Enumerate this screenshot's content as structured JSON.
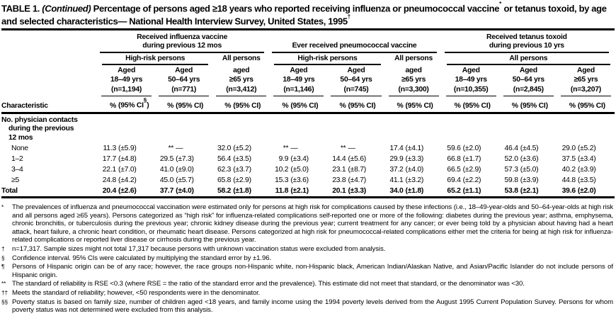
{
  "colors": {
    "text": "#000000",
    "background": "#ffffff"
  },
  "title": {
    "label": "TABLE 1.",
    "continued": "(Continued)",
    "body": "Percentage of persons aged ≥18 years who reported receiving influenza or pneumococcal vaccine",
    "sup1": "*",
    "body2": " or tetanus toxoid, by age and selected characteristics— National Health Interview Survey, United States, 1995",
    "sup2": "†"
  },
  "table": {
    "stub_header": "Characteristic",
    "pct_symbol": "%",
    "ci_prefix": "(95% CI",
    "ci_suffix": ")",
    "groups": [
      {
        "id": "influenza",
        "title_lines": [
          "Received influenza vaccine",
          "during previous 12 mos"
        ],
        "subgroups": [
          {
            "label": "High-risk persons",
            "cols": 2,
            "rule": true
          },
          {
            "label": "All persons",
            "cols": 1,
            "rule": false
          }
        ]
      },
      {
        "id": "pneumococcal",
        "title_lines": [
          "Ever received pneumococcal vaccine"
        ],
        "subgroups": [
          {
            "label": "High-risk persons",
            "cols": 2,
            "rule": true
          },
          {
            "label": "All persons",
            "cols": 1,
            "rule": false
          }
        ]
      },
      {
        "id": "tetanus",
        "title_lines": [
          "Received tetanus toxoid",
          "during previous 10 yrs"
        ],
        "subgroups": [
          {
            "label": "All persons",
            "cols": 3,
            "rule": true
          }
        ]
      }
    ],
    "columns": [
      {
        "aged": "Aged",
        "range": "18–49 yrs",
        "n": "(n=1,194)",
        "ci_sup": "§"
      },
      {
        "aged": "Aged",
        "range": "50–64 yrs",
        "n": "(n=771)"
      },
      {
        "aged": "aged",
        "range": "≥65 yrs",
        "n": "(n=3,412)"
      },
      {
        "aged": "Aged",
        "range": "18–49 yrs",
        "n": "(n=1,146)"
      },
      {
        "aged": "Aged",
        "range": "50–64 yrs",
        "n": "(n=745)"
      },
      {
        "aged": "aged",
        "range": "≥65 yrs",
        "n": "(n=3,300)"
      },
      {
        "aged": "Aged",
        "range": "18–49 yrs",
        "n": "(n=10,355)"
      },
      {
        "aged": "Aged",
        "range": "50–64 yrs",
        "n": "(n=2,845)"
      },
      {
        "aged": "Aged",
        "range": "≥65 yrs",
        "n": "(n=3,207)"
      }
    ],
    "section_lines": [
      {
        "text": "No. physician contacts",
        "indent": false
      },
      {
        "text": "during the previous",
        "indent": true
      },
      {
        "text": "12 mos",
        "indent": true
      }
    ],
    "rows": [
      {
        "id": "none",
        "label": "None",
        "bold": false,
        "cells": [
          [
            "11.3",
            "(±5.9)"
          ],
          [
            "**",
            "—"
          ],
          [
            "32.0",
            "(±5.2)"
          ],
          [
            "**",
            "—"
          ],
          [
            "**",
            "—"
          ],
          [
            "17.4",
            "(±4.1)"
          ],
          [
            "59.6",
            "(±2.0)"
          ],
          [
            "46.4",
            "(±4.5)"
          ],
          [
            "29.0",
            "(±5.2)"
          ]
        ]
      },
      {
        "id": "1-2",
        "label": "1–2",
        "bold": false,
        "cells": [
          [
            "17.7",
            "(±4.8)"
          ],
          [
            "29.5",
            "(±7.3)"
          ],
          [
            "56.4",
            "(±3.5)"
          ],
          [
            "9.9",
            "(±3.4)"
          ],
          [
            "14.4",
            "(±5.6)"
          ],
          [
            "29.9",
            "(±3.3)"
          ],
          [
            "66.8",
            "(±1.7)"
          ],
          [
            "52.0",
            "(±3.6)"
          ],
          [
            "37.5",
            "(±3.4)"
          ]
        ]
      },
      {
        "id": "3-4",
        "label": "3–4",
        "bold": false,
        "cells": [
          [
            "22.1",
            "(±7.0)"
          ],
          [
            "41.0",
            "(±9.0)"
          ],
          [
            "62.3",
            "(±3.7)"
          ],
          [
            "10.2",
            "(±5.0)"
          ],
          [
            "23.1",
            "(±8.7)"
          ],
          [
            "37.2",
            "(±4.0)"
          ],
          [
            "66.5",
            "(±2.9)"
          ],
          [
            "57.3",
            "(±5.0)"
          ],
          [
            "40.2",
            "(±3.9)"
          ]
        ]
      },
      {
        "id": "5-plus",
        "label": "≥5",
        "bold": false,
        "cells": [
          [
            "24.8",
            "(±4.2)"
          ],
          [
            "45.0",
            "(±5.7)"
          ],
          [
            "65.8",
            "(±2.9)"
          ],
          [
            "15.3",
            "(±3.6)"
          ],
          [
            "23.8",
            "(±4.7)"
          ],
          [
            "41.1",
            "(±3.2)"
          ],
          [
            "69.4",
            "(±2.2)"
          ],
          [
            "59.8",
            "(±3.9)"
          ],
          [
            "44.8",
            "(±3.5)"
          ]
        ]
      },
      {
        "id": "total",
        "label": "Total",
        "bold": true,
        "cells": [
          [
            "20.4",
            "(±2.6)"
          ],
          [
            "37.7",
            "(±4.0)"
          ],
          [
            "58.2",
            "(±1.8)"
          ],
          [
            "11.8",
            "(±2.1)"
          ],
          [
            "20.1",
            "(±3.3)"
          ],
          [
            "34.0",
            "(±1.8)"
          ],
          [
            "65.2",
            "(±1.1)"
          ],
          [
            "53.8",
            "(±2.1)"
          ],
          [
            "39.6",
            "(±2.0)"
          ]
        ]
      }
    ]
  },
  "footnotes": [
    {
      "marker": "*",
      "text": "The prevalences of influenza and pneumococcal vaccination were estimated only for persons at high risk for complications caused by these infections (i.e., 18–49-year-olds and 50–64-year-olds at high risk and all persons aged ≥65 years). Persons categorized as “high risk” for influenza-related complications self-reported one or more of the following: diabetes during the previous year; asthma, emphysema, chronic bronchitis, or tuberculosis during the previous year; chronic kidney disease during the previous year; current treatment for any cancer; or ever being told by a physician about having had a heart attack, heart failure, a chronic heart condition, or rheumatic heart disease. Persons categorized at high risk for pneumococcal-related complications either met the criteria for being at high risk for influenza-related complications or reported liver disease or cirrhosis during the previous year."
    },
    {
      "marker": "†",
      "text": "n=17,317. Sample sizes might not total 17,317 because persons with unknown vaccination status were excluded from analysis."
    },
    {
      "marker": "§",
      "text": "Confidence interval. 95% CIs were calculated by multiplying the standard error by ±1.96."
    },
    {
      "marker": "¶",
      "text": "Persons of Hispanic origin can be of any race; however, the race groups non-Hispanic white, non-Hispanic black, American Indian/Alaskan Native, and Asian/Pacific Islander do not include persons of Hispanic origin."
    },
    {
      "marker": "**",
      "text": "The standard of reliability is RSE <0.3 (where RSE = the ratio of the standard error and the prevalence). This estimate did not meet that standard, or the denominator was <30."
    },
    {
      "marker": "††",
      "text": "Meets the standard of reliability; however, <50 respondents were in the denominator."
    },
    {
      "marker": "§§",
      "text": "Poverty status is based on family size, number of children aged <18 years, and family income using the 1994 poverty levels derived from the August 1995 Current Population Survey. Persons for whom poverty status was not determined were excluded from this analysis."
    }
  ]
}
